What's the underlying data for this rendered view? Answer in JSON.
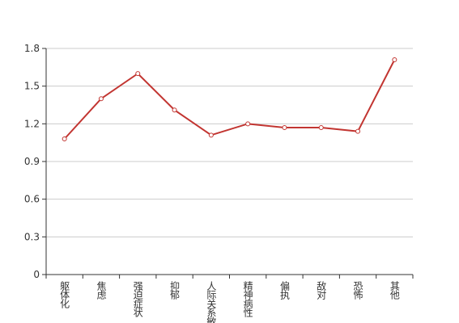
{
  "chart_data": {
    "type": "line",
    "categories": [
      "躯体化",
      "焦虑",
      "强迫症状",
      "抑郁",
      "人际关系敏感",
      "精神病性",
      "偏执",
      "敌对",
      "恐怖",
      "其他"
    ],
    "values": [
      1.08,
      1.4,
      1.6,
      1.31,
      1.11,
      1.2,
      1.17,
      1.17,
      1.14,
      1.71
    ],
    "color": "#c23531",
    "ylim": [
      0,
      1.8
    ],
    "yticks": [
      0,
      0.3,
      0.6,
      0.9,
      1.2,
      1.5,
      1.8
    ],
    "grid": true
  }
}
